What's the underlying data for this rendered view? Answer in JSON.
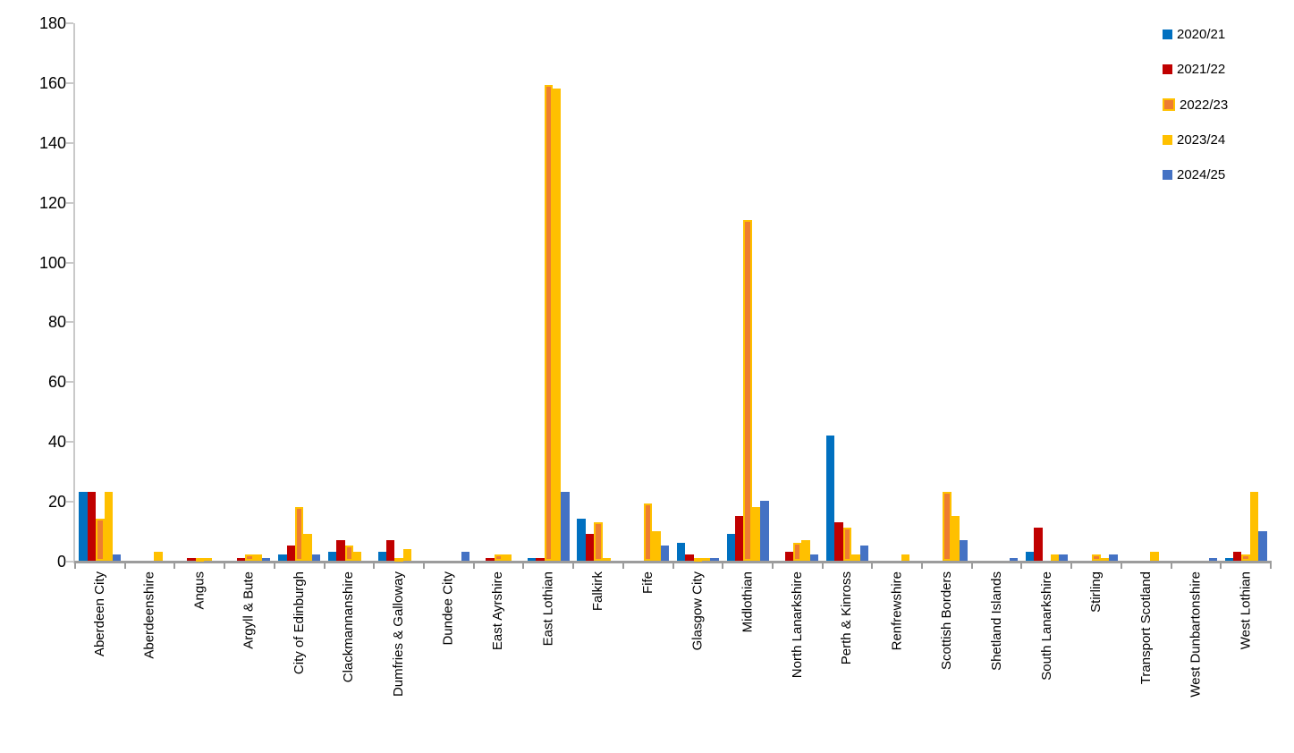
{
  "chart_data": {
    "type": "bar",
    "title": "",
    "xlabel": "",
    "ylabel": "",
    "categories": [
      "Aberdeen City",
      "Aberdeenshire",
      "Angus",
      "Argyll & Bute",
      "City of Edinburgh",
      "Clackmannanshire",
      "Dumfries & Galloway",
      "Dundee City",
      "East Ayrshire",
      "East Lothian",
      "Falkirk",
      "Fife",
      "Glasgow City",
      "Midlothian",
      "North Lanarkshire",
      "Perth & Kinross",
      "Renfrewshire",
      "Scottish Borders",
      "Shetland Islands",
      "South Lanarkshire",
      "Stirling",
      "Transport Scotland",
      "West Dunbartonshire",
      "West Lothian"
    ],
    "series": [
      {
        "name": "2020/21",
        "color": "#0070C0",
        "values": [
          23,
          0,
          0,
          0,
          2,
          3,
          3,
          0,
          0,
          1,
          14,
          0,
          6,
          9,
          0,
          42,
          0,
          0,
          0,
          3,
          0,
          0,
          0,
          1
        ]
      },
      {
        "name": "2021/22",
        "color": "#C00000",
        "values": [
          23,
          0,
          1,
          1,
          5,
          7,
          7,
          0,
          1,
          1,
          9,
          0,
          2,
          15,
          3,
          13,
          0,
          0,
          0,
          11,
          0,
          0,
          0,
          3
        ]
      },
      {
        "name": "2022/23",
        "color": "#ED7D31",
        "border_color": "#FFC000",
        "values": [
          14,
          0,
          1,
          2,
          18,
          5,
          1,
          0,
          2,
          159,
          13,
          19,
          1,
          114,
          6,
          11,
          0,
          23,
          0,
          0,
          2,
          0,
          0,
          2
        ]
      },
      {
        "name": "2023/24",
        "color": "#FFC000",
        "values": [
          23,
          3,
          1,
          2,
          9,
          3,
          4,
          0,
          2,
          158,
          1,
          10,
          1,
          18,
          7,
          2,
          2,
          15,
          0,
          2,
          1,
          3,
          0,
          23
        ]
      },
      {
        "name": "2024/25",
        "color": "#4472C4",
        "values": [
          2,
          0,
          0,
          1,
          2,
          0,
          0,
          3,
          0,
          23,
          0,
          5,
          1,
          20,
          2,
          5,
          0,
          7,
          1,
          2,
          2,
          0,
          1,
          10
        ]
      }
    ],
    "ylim": [
      0,
      180
    ],
    "y_tick_interval": 20,
    "y_tick_labels": [
      "0",
      "20",
      "40",
      "60",
      "80",
      "100",
      "120",
      "140",
      "160",
      "180"
    ],
    "grid": false,
    "legend_position": "top-right",
    "background_color": "#FFFFFF",
    "y_axis_color": "#C9C9C9",
    "x_axis_color": "#9C9C9C",
    "text_color": "#000000"
  }
}
